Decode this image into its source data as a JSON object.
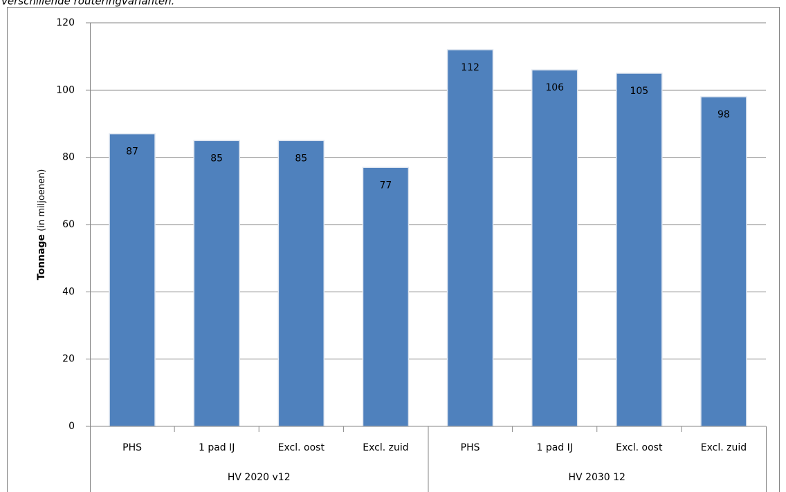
{
  "caption": "verschillende routeringvarianten.",
  "chart_data": {
    "type": "bar",
    "y_label": [
      "Tonnage",
      "(in miljoenen)"
    ],
    "groups": [
      {
        "name": "HV 2020 v12",
        "categories": [
          "PHS",
          "1 pad IJ",
          "Excl. oost",
          "Excl. zuid"
        ],
        "values": [
          87,
          85,
          85,
          77
        ]
      },
      {
        "name": "HV 2030 12",
        "categories": [
          "PHS",
          "1 pad IJ",
          "Excl. oost",
          "Excl. zuid"
        ],
        "values": [
          112,
          106,
          105,
          98
        ]
      }
    ],
    "color": "#4f81bd",
    "ylim": [
      0,
      120
    ],
    "yticks": [
      0,
      20,
      40,
      60,
      80,
      100,
      120
    ],
    "grid": true,
    "data_labels": true
  }
}
